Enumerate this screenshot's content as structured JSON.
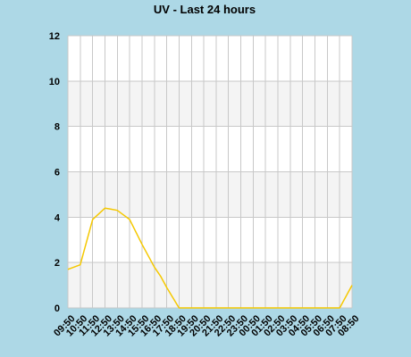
{
  "chart_data": {
    "type": "line",
    "title": "UV - Last 24 hours",
    "xlabel": "",
    "ylabel": "",
    "ylim": [
      0,
      12
    ],
    "yticks": [
      0,
      2,
      4,
      6,
      8,
      10,
      12
    ],
    "grid": true,
    "categories": [
      "09:50",
      "10:50",
      "11:50",
      "12:50",
      "13:50",
      "14:50",
      "15:50",
      "16:50",
      "17:50",
      "18:50",
      "19:50",
      "20:50",
      "21:50",
      "22:50",
      "23:50",
      "00:50",
      "01:50",
      "02:50",
      "03:50",
      "04:50",
      "05:50",
      "06:50",
      "07:50",
      "08:50"
    ],
    "series": [
      {
        "color": "#f5c800",
        "x": [
          0,
          1,
          2,
          3,
          3.5,
          4,
          4.5,
          5,
          6,
          7,
          7.5,
          8,
          9,
          10,
          11,
          12,
          13,
          14,
          15,
          16,
          17,
          18,
          19,
          20,
          21,
          22,
          23
        ],
        "values": [
          1.7,
          1.9,
          3.9,
          4.4,
          4.35,
          4.3,
          4.1,
          3.9,
          2.8,
          1.8,
          1.4,
          0.9,
          0,
          0,
          0,
          0,
          0,
          0,
          0,
          0,
          0,
          0,
          0,
          0,
          0,
          0,
          1.0
        ]
      }
    ],
    "colors": {
      "background": "#add8e6",
      "plot_band_light": "#f4f4f4",
      "plot_band_white": "#ffffff",
      "grid": "#c8c8c8",
      "line": "#f5c800"
    }
  }
}
